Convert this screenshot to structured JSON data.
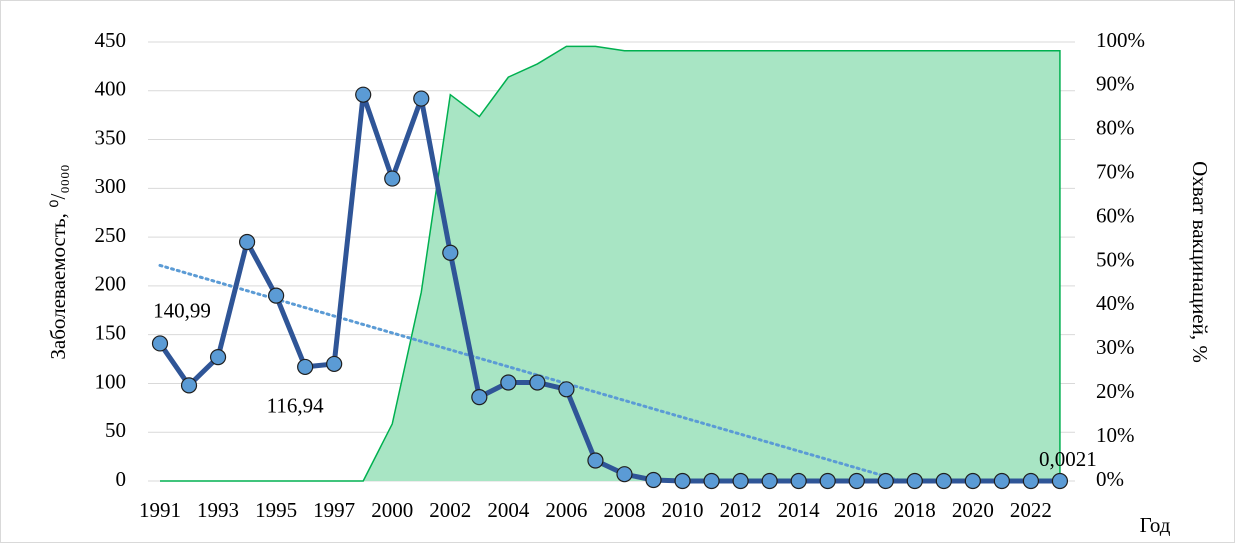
{
  "chart_data": {
    "type": "line",
    "ylabel": "Заболеваемость, ⁰/₀₀₀₀",
    "y2label": "Охват вакцинацией, %",
    "xlabel": "Год",
    "categories": [
      "1991",
      null,
      "1993",
      null,
      "1995",
      null,
      "1997",
      null,
      "2000",
      null,
      "2002",
      null,
      "2004",
      null,
      "2006",
      null,
      "2008",
      null,
      "2010",
      null,
      "2012",
      null,
      "2014",
      null,
      "2016",
      null,
      "2018",
      null,
      "2020",
      null,
      "2022",
      null
    ],
    "series": [
      {
        "name": "Охват вакцинацией",
        "type": "area",
        "axis": "y2",
        "color": "#a8e5c4",
        "stroke": "#00b050",
        "values": [
          0,
          0,
          0,
          0,
          0,
          0,
          0,
          0,
          13,
          43,
          88,
          83,
          92,
          95,
          99,
          99,
          98,
          98,
          98,
          98,
          98,
          98,
          98,
          98,
          98,
          98,
          98,
          98,
          98,
          98,
          98,
          98
        ]
      },
      {
        "name": "Заболеваемость",
        "type": "line",
        "axis": "y",
        "color": "#2f5597",
        "marker_color": "#5b9bd5",
        "values": [
          140.99,
          98,
          127,
          245,
          190,
          116.94,
          120,
          396,
          310,
          392,
          234,
          86,
          101,
          101,
          94,
          21,
          7,
          1,
          0,
          0,
          0,
          0,
          0,
          0,
          0,
          0,
          0,
          0,
          0,
          0,
          0,
          0.0021
        ],
        "value_labels": [
          "140,99",
          null,
          null,
          null,
          null,
          "116,94",
          null,
          null,
          null,
          null,
          null,
          null,
          null,
          null,
          null,
          null,
          null,
          null,
          null,
          null,
          null,
          null,
          null,
          null,
          null,
          null,
          null,
          null,
          null,
          null,
          null,
          "0,0021"
        ],
        "trendline": true,
        "trend_color": "#5b9bd5"
      }
    ],
    "ylim": [
      0,
      450
    ],
    "yticks": [
      0,
      50,
      100,
      150,
      200,
      250,
      300,
      350,
      400,
      450
    ],
    "y2lim": [
      0,
      100
    ],
    "y2ticks": [
      {
        "value": 0,
        "label": "0%"
      },
      {
        "value": 10,
        "label": "10%"
      },
      {
        "value": 20,
        "label": "20%"
      },
      {
        "value": 30,
        "label": "30%"
      },
      {
        "value": 40,
        "label": "40%"
      },
      {
        "value": 50,
        "label": "50%"
      },
      {
        "value": 60,
        "label": "60%"
      },
      {
        "value": 70,
        "label": "70%"
      },
      {
        "value": 80,
        "label": "80%"
      },
      {
        "value": 90,
        "label": "90%"
      },
      {
        "value": 100,
        "label": "100%"
      }
    ],
    "grid": true
  }
}
